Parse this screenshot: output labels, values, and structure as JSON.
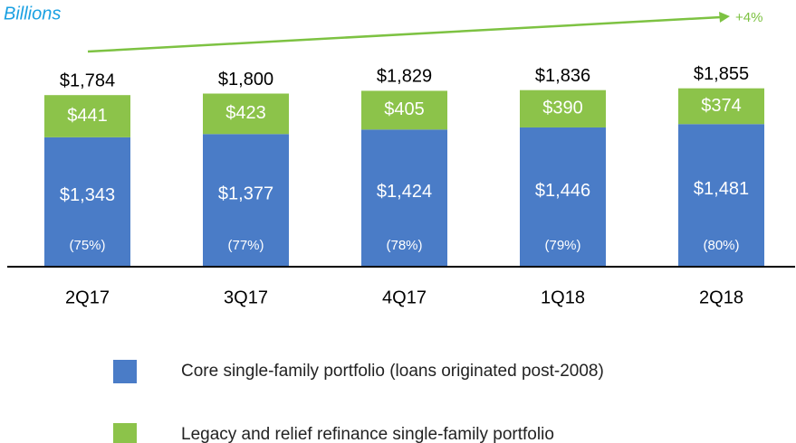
{
  "chart_data": {
    "type": "stacked_bar",
    "subtitle": "Billions",
    "annotation": "+4%",
    "categories": [
      "2Q17",
      "3Q17",
      "4Q17",
      "1Q18",
      "2Q18"
    ],
    "series": [
      {
        "name": "Core single-family portfolio (loans originated post-2008)",
        "color": "#4a7cc7",
        "values": [
          1343,
          1377,
          1424,
          1446,
          1481
        ],
        "value_labels": [
          "$1,343",
          "$1,377",
          "$1,424",
          "$1,446",
          "$1,481"
        ]
      },
      {
        "name": "Legacy and relief refinance single-family portfolio",
        "color": "#8cc34a",
        "values": [
          441,
          423,
          405,
          390,
          374
        ],
        "value_labels": [
          "$441",
          "$423",
          "$405",
          "$390",
          "$374"
        ]
      }
    ],
    "share_labels": [
      "(75%)",
      "(77%)",
      "(78%)",
      "(79%)",
      "(80%)"
    ],
    "totals": [
      1784,
      1800,
      1829,
      1836,
      1855
    ],
    "total_labels": [
      "$1,784",
      "$1,800",
      "$1,829",
      "$1,836",
      "$1,855"
    ],
    "ylim": [
      0,
      2400
    ]
  }
}
